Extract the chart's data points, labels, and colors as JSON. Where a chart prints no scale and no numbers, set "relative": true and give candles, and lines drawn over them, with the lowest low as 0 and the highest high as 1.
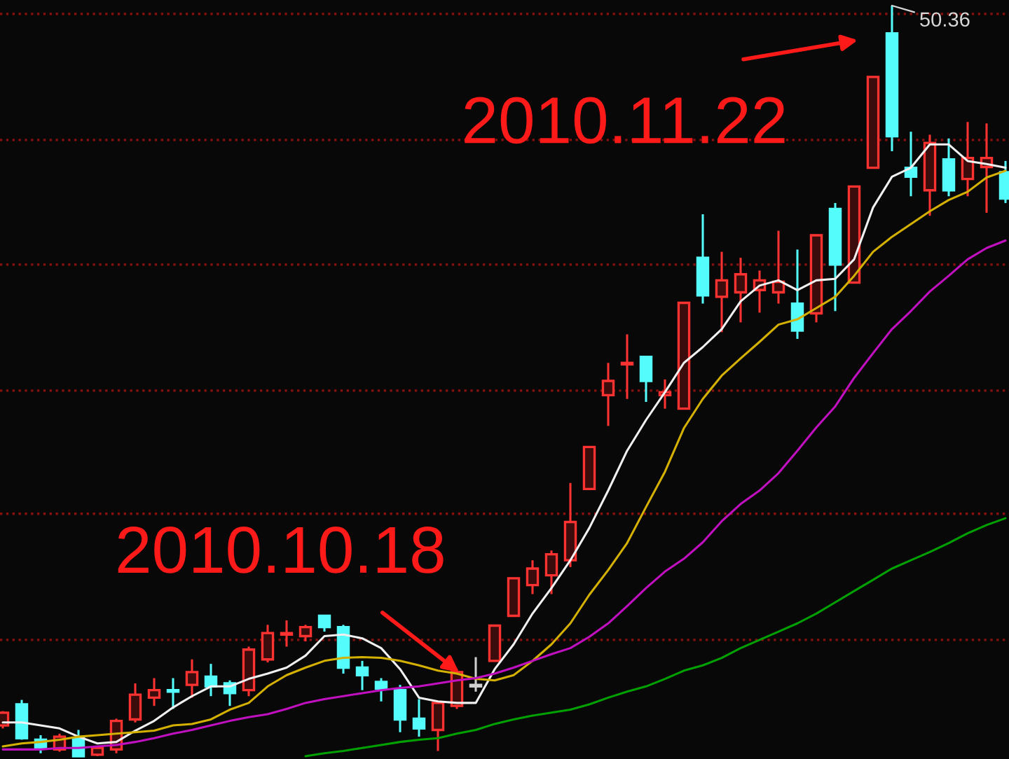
{
  "chart_data": {
    "type": "candlestick",
    "relative": true,
    "categories": [
      null,
      null,
      null,
      null,
      null,
      null,
      null,
      null,
      null,
      null,
      null,
      null,
      null,
      null,
      null,
      null,
      null,
      null,
      null,
      null,
      null,
      null,
      null,
      null,
      null,
      null,
      null,
      null,
      null,
      null,
      null,
      null,
      null,
      null,
      null,
      null,
      null,
      null,
      null,
      null,
      null,
      null,
      null,
      null,
      null,
      null,
      null,
      null,
      null,
      null,
      null,
      null,
      null,
      null
    ],
    "ohlc": [
      [
        0.041,
        0.06,
        0.037,
        0.058
      ],
      [
        0.069,
        0.075,
        0.022,
        0.024
      ],
      [
        0.022,
        0.028,
        0.004,
        0.011
      ],
      [
        0.009,
        0.03,
        0.006,
        0.026
      ],
      [
        0.024,
        0.035,
        0,
        0
      ],
      [
        0.002,
        0.013,
        0,
        0.011
      ],
      [
        0.009,
        0.05,
        0.004,
        0.047
      ],
      [
        0.049,
        0.097,
        0.045,
        0.082
      ],
      [
        0.078,
        0.104,
        0.067,
        0.088
      ],
      [
        0.088,
        0.104,
        0.063,
        0.086
      ],
      [
        0.095,
        0.129,
        0.078,
        0.112
      ],
      [
        0.106,
        0.123,
        0.08,
        0.093
      ],
      [
        0.097,
        0.101,
        0.067,
        0.084
      ],
      [
        0.088,
        0.146,
        0.08,
        0.142
      ],
      [
        0.129,
        0.175,
        0.125,
        0.164
      ],
      [
        0.162,
        0.181,
        0.146,
        0.164
      ],
      [
        0.16,
        0.175,
        0.153,
        0.172
      ],
      [
        0.187,
        0.188,
        0.166,
        0.172
      ],
      [
        0.172,
        0.175,
        0.11,
        0.118
      ],
      [
        0.118,
        0.127,
        0.088,
        0.108
      ],
      [
        0.099,
        0.104,
        0.073,
        0.09
      ],
      [
        0.088,
        0.095,
        0.032,
        0.049
      ],
      [
        0.05,
        0.076,
        0.026,
        0.037
      ],
      [
        0.035,
        0.071,
        0.007,
        0.071
      ],
      [
        0.067,
        0.116,
        0.063,
        0.112
      ],
      [
        0.093,
        0.132,
        0.086,
        0.093
      ],
      [
        0.127,
        0.174,
        0.127,
        0.174
      ],
      [
        0.187,
        0.237,
        0.187,
        0.237
      ],
      [
        0.228,
        0.261,
        0.216,
        0.25
      ],
      [
        0.241,
        0.274,
        0.216,
        0.269
      ],
      [
        0.261,
        0.364,
        0.252,
        0.312
      ],
      [
        0.356,
        0.412,
        0.356,
        0.412
      ],
      [
        0.481,
        0.524,
        0.44,
        0.5
      ],
      [
        0.522,
        0.562,
        0.476,
        0.524
      ],
      [
        0.532,
        0.532,
        0.472,
        0.5
      ],
      [
        0.481,
        0.502,
        0.463,
        0.485
      ],
      [
        0.463,
        0.604,
        0.463,
        0.604
      ],
      [
        0.664,
        0.722,
        0.603,
        0.614
      ],
      [
        0.612,
        0.672,
        0.565,
        0.634
      ],
      [
        0.618,
        0.664,
        0.578,
        0.642
      ],
      [
        0.621,
        0.647,
        0.591,
        0.634
      ],
      [
        0.618,
        0.7,
        0.603,
        0.632
      ],
      [
        0.603,
        0.675,
        0.556,
        0.567
      ],
      [
        0.59,
        0.694,
        0.578,
        0.694
      ],
      [
        0.729,
        0.737,
        0.593,
        0.655
      ],
      [
        0.631,
        0.759,
        0.631,
        0.759
      ],
      [
        0.784,
        0.905,
        0.784,
        0.905
      ],
      [
        0.963,
        1,
        0.806,
        0.826
      ],
      [
        0.784,
        0.832,
        0.746,
        0.772
      ],
      [
        0.754,
        0.828,
        0.72,
        0.817
      ],
      [
        0.795,
        0.823,
        0.746,
        0.754
      ],
      [
        0.769,
        0.845,
        0.746,
        0.797
      ],
      [
        0.785,
        0.843,
        0.724,
        0.797
      ],
      [
        0.778,
        0.793,
        0.737,
        0.743
      ]
    ],
    "colors": [
      "#ff3232",
      "#54fcfc",
      "#54fcfc",
      "#ff3232",
      "#54fcfc",
      "#ff3232",
      "#ff3232",
      "#ff3232",
      "#ff3232",
      "#54fcfc",
      "#ff3232",
      "#54fcfc",
      "#54fcfc",
      "#ff3232",
      "#ff3232",
      "#ff3232",
      "#ff3232",
      "#54fcfc",
      "#54fcfc",
      "#54fcfc",
      "#54fcfc",
      "#54fcfc",
      "#54fcfc",
      "#ff3232",
      "#ff3232",
      "#d0d0d0",
      "#ff3232",
      "#ff3232",
      "#ff3232",
      "#ff3232",
      "#ff3232",
      "#ff3232",
      "#ff3232",
      "#ff3232",
      "#54fcfc",
      "#ff3232",
      "#ff3232",
      "#54fcfc",
      "#ff3232",
      "#ff3232",
      "#ff3232",
      "#ff3232",
      "#54fcfc",
      "#ff3232",
      "#54fcfc",
      "#ff3232",
      "#ff3232",
      "#54fcfc",
      "#54fcfc",
      "#ff3232",
      "#54fcfc",
      "#ff3232",
      "#ff3232",
      "#54fcfc"
    ],
    "series": [
      {
        "type": "line",
        "color": "#f0f0f0",
        "values": [
          0.045,
          0.045,
          0.041,
          0.037,
          0.026,
          0.017,
          0.019,
          0.034,
          0.047,
          0.065,
          0.08,
          0.093,
          0.093,
          0.103,
          0.11,
          0.118,
          0.134,
          0.16,
          0.162,
          0.157,
          0.144,
          0.116,
          0.078,
          0.073,
          0.071,
          0.071,
          0.116,
          0.149,
          0.19,
          0.224,
          0.261,
          0.304,
          0.354,
          0.407,
          0.448,
          0.485,
          0.524,
          0.545,
          0.569,
          0.606,
          0.627,
          0.634,
          0.621,
          0.634,
          0.636,
          0.662,
          0.731,
          0.772,
          0.784,
          0.815,
          0.815,
          0.793,
          0.789,
          0.784
        ]
      },
      {
        "type": "line",
        "color": "#d4b000",
        "values": [
          0.013,
          0.017,
          0.019,
          0.022,
          0.026,
          0.028,
          0.03,
          0.032,
          0.034,
          0.041,
          0.043,
          0.049,
          0.062,
          0.071,
          0.093,
          0.108,
          0.118,
          0.127,
          0.131,
          0.132,
          0.131,
          0.127,
          0.121,
          0.114,
          0.11,
          0.103,
          0.101,
          0.108,
          0.127,
          0.149,
          0.177,
          0.215,
          0.248,
          0.284,
          0.332,
          0.379,
          0.437,
          0.476,
          0.507,
          0.53,
          0.552,
          0.575,
          0.582,
          0.597,
          0.612,
          0.64,
          0.672,
          0.692,
          0.709,
          0.726,
          0.741,
          0.752,
          0.771,
          0.78
        ]
      },
      {
        "type": "line",
        "color": "#c010c0",
        "values": [
          0.009,
          0.009,
          0.009,
          0.011,
          0.011,
          0.013,
          0.015,
          0.019,
          0.024,
          0.03,
          0.035,
          0.041,
          0.047,
          0.052,
          0.056,
          0.063,
          0.071,
          0.076,
          0.08,
          0.084,
          0.088,
          0.091,
          0.093,
          0.097,
          0.101,
          0.104,
          0.11,
          0.118,
          0.127,
          0.136,
          0.144,
          0.159,
          0.177,
          0.2,
          0.224,
          0.246,
          0.263,
          0.285,
          0.313,
          0.336,
          0.354,
          0.377,
          0.407,
          0.438,
          0.466,
          0.504,
          0.537,
          0.569,
          0.593,
          0.619,
          0.64,
          0.662,
          0.677,
          0.687
        ]
      },
      {
        "type": "line",
        "color": "#00a000",
        "values": [
          null,
          null,
          null,
          null,
          null,
          null,
          null,
          null,
          null,
          null,
          null,
          null,
          null,
          null,
          null,
          null,
          0,
          0.004,
          0.007,
          0.011,
          0.015,
          0.019,
          0.022,
          0.024,
          0.03,
          0.035,
          0.043,
          0.049,
          0.054,
          0.058,
          0.062,
          0.069,
          0.078,
          0.086,
          0.093,
          0.103,
          0.114,
          0.121,
          0.131,
          0.144,
          0.155,
          0.166,
          0.177,
          0.19,
          0.205,
          0.22,
          0.235,
          0.25,
          0.261,
          0.272,
          0.284,
          0.297,
          0.308,
          0.317
        ]
      }
    ],
    "ref_lines": [
      {
        "axis": "y",
        "value": 0.989,
        "color": "#8a1010",
        "line_style": "dotted"
      },
      {
        "axis": "y",
        "value": 0.821,
        "color": "#8a1010",
        "line_style": "dotted"
      },
      {
        "axis": "y",
        "value": 0.655,
        "color": "#8a1010",
        "line_style": "dotted"
      },
      {
        "axis": "y",
        "value": 0.487,
        "color": "#8a1010",
        "line_style": "dotted"
      },
      {
        "axis": "y",
        "value": 0.323,
        "color": "#8a1010",
        "line_style": "dotted"
      },
      {
        "axis": "y",
        "value": 0.155,
        "color": "#8a1010",
        "line_style": "dotted"
      }
    ],
    "annotations": [
      "50.36",
      "2010.11.22",
      "2010.10.18"
    ]
  }
}
